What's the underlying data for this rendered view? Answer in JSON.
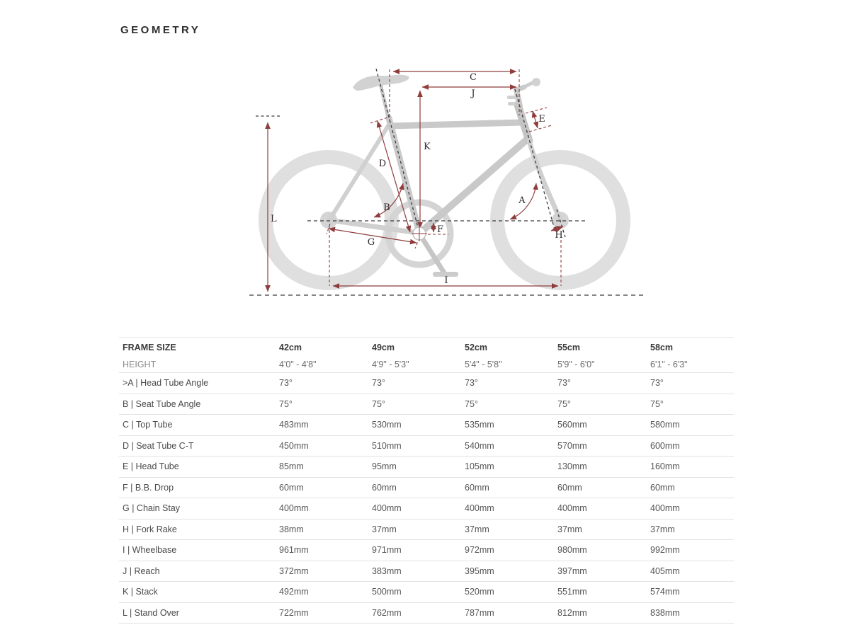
{
  "page": {
    "title": "GEOMETRY"
  },
  "diagram": {
    "letters": {
      "A": "A",
      "B": "B",
      "C": "C",
      "D": "D",
      "E": "E",
      "F": "F",
      "G": "G",
      "H": "H",
      "I": "I",
      "J": "J",
      "K": "K",
      "L": "L"
    },
    "colors": {
      "dimension": "#8f3c3c",
      "frame": "#c9c9c9",
      "wheel": "#dfdfdf",
      "dash": "#3f3f3f"
    }
  },
  "table": {
    "header_label": "FRAME SIZE",
    "sizes": [
      "42cm",
      "49cm",
      "52cm",
      "55cm",
      "58cm"
    ],
    "height_label": "HEIGHT",
    "heights": [
      "4'0\" - 4'8\"",
      "4'9\" - 5'3\"",
      "5'4\" - 5'8\"",
      "5'9\" - 6'0\"",
      "6'1\" - 6'3\""
    ],
    "rows": [
      {
        "label": ">A | Head Tube Angle",
        "values": [
          "73°",
          "73°",
          "73°",
          "73°",
          "73°"
        ]
      },
      {
        "label": "B | Seat Tube Angle",
        "values": [
          "75°",
          "75°",
          "75°",
          "75°",
          "75°"
        ]
      },
      {
        "label": "C | Top Tube",
        "values": [
          "483mm",
          "530mm",
          "535mm",
          "560mm",
          "580mm"
        ]
      },
      {
        "label": "D | Seat Tube C-T",
        "values": [
          "450mm",
          "510mm",
          "540mm",
          "570mm",
          "600mm"
        ]
      },
      {
        "label": "E | Head Tube",
        "values": [
          "85mm",
          "95mm",
          "105mm",
          "130mm",
          "160mm"
        ]
      },
      {
        "label": "F | B.B. Drop",
        "values": [
          "60mm",
          "60mm",
          "60mm",
          "60mm",
          "60mm"
        ]
      },
      {
        "label": "G | Chain Stay",
        "values": [
          "400mm",
          "400mm",
          "400mm",
          "400mm",
          "400mm"
        ]
      },
      {
        "label": "H | Fork Rake",
        "values": [
          "38mm",
          "37mm",
          "37mm",
          "37mm",
          "37mm"
        ]
      },
      {
        "label": "I | Wheelbase",
        "values": [
          "961mm",
          "971mm",
          "972mm",
          "980mm",
          "992mm"
        ]
      },
      {
        "label": "J | Reach",
        "values": [
          "372mm",
          "383mm",
          "395mm",
          "397mm",
          "405mm"
        ]
      },
      {
        "label": "K | Stack",
        "values": [
          "492mm",
          "500mm",
          "520mm",
          "551mm",
          "574mm"
        ]
      },
      {
        "label": "L | Stand Over",
        "values": [
          "722mm",
          "762mm",
          "787mm",
          "812mm",
          "838mm"
        ]
      }
    ]
  }
}
